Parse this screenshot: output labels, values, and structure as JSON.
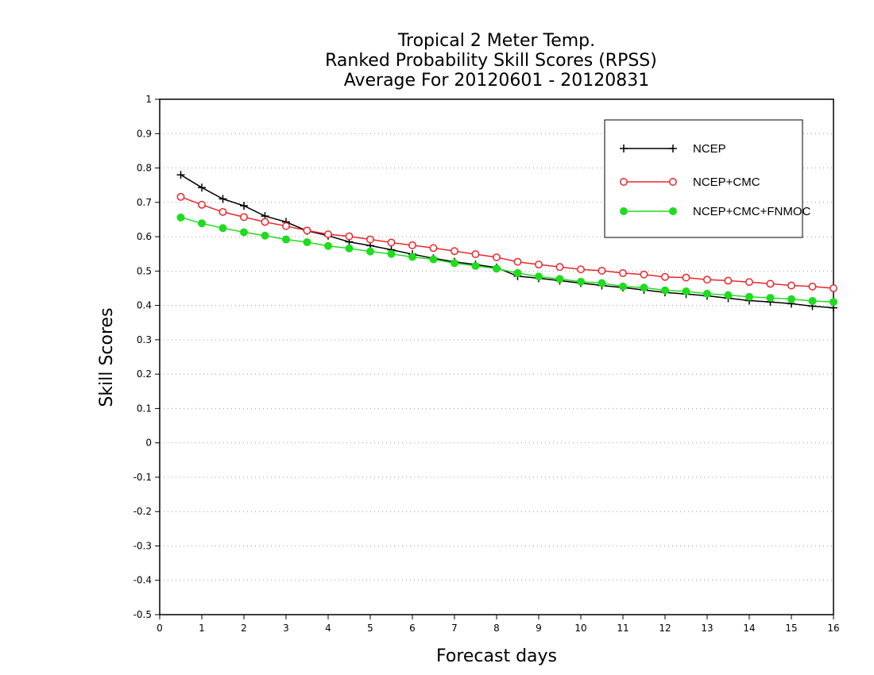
{
  "chart_data": {
    "type": "line",
    "title_lines": [
      "Tropical 2 Meter Temp.",
      "Ranked Probability Skill Scores (RPSS)",
      "Average For 20120601 - 20120831"
    ],
    "xlabel": "Forecast days",
    "ylabel": "Skill Scores",
    "xlim": [
      0,
      16
    ],
    "ylim": [
      -0.5,
      1
    ],
    "x_ticks": [
      "0",
      "1",
      "2",
      "3",
      "4",
      "5",
      "6",
      "7",
      "8",
      "9",
      "10",
      "11",
      "12",
      "13",
      "14",
      "15",
      "16"
    ],
    "y_ticks": [
      "-0.5",
      "-0.4",
      "-0.3",
      "-0.2",
      "-0.1",
      "0",
      "0.1",
      "0.2",
      "0.3",
      "0.4",
      "0.5",
      "0.6",
      "0.7",
      "0.8",
      "0.9",
      "1"
    ],
    "grid": "horizontal dotted",
    "legend_position": "top-right",
    "x": [
      0.5,
      1,
      1.5,
      2,
      2.5,
      3,
      3.5,
      4,
      4.5,
      5,
      5.5,
      6,
      6.5,
      7,
      7.5,
      8,
      8.5,
      9,
      9.5,
      10,
      10.5,
      11,
      11.5,
      12,
      12.5,
      13,
      13.5,
      14,
      14.5,
      15,
      15.5,
      16
    ],
    "series": [
      {
        "name": "NCEP",
        "color": "#000000",
        "marker": "plus",
        "values": [
          0.78,
          0.743,
          0.71,
          0.69,
          0.66,
          0.643,
          0.617,
          0.603,
          0.585,
          0.574,
          0.562,
          0.549,
          0.537,
          0.527,
          0.519,
          0.51,
          0.485,
          0.479,
          0.472,
          0.465,
          0.458,
          0.452,
          0.445,
          0.438,
          0.433,
          0.428,
          0.421,
          0.414,
          0.41,
          0.405,
          0.398,
          0.393
        ]
      },
      {
        "name": "NCEP+CMC",
        "color": "#e8262b",
        "marker": "open-circle",
        "values": [
          0.716,
          0.693,
          0.672,
          0.657,
          0.643,
          0.631,
          0.618,
          0.607,
          0.601,
          0.592,
          0.583,
          0.575,
          0.567,
          0.558,
          0.549,
          0.54,
          0.527,
          0.519,
          0.512,
          0.505,
          0.501,
          0.494,
          0.49,
          0.483,
          0.481,
          0.475,
          0.472,
          0.468,
          0.463,
          0.458,
          0.455,
          0.45
        ]
      },
      {
        "name": "NCEP+CMC+FNMOC",
        "color": "#1fdc1f",
        "marker": "filled-circle",
        "values": [
          0.656,
          0.639,
          0.625,
          0.613,
          0.603,
          0.592,
          0.584,
          0.573,
          0.566,
          0.557,
          0.55,
          0.541,
          0.534,
          0.523,
          0.515,
          0.507,
          0.494,
          0.484,
          0.477,
          0.469,
          0.465,
          0.455,
          0.452,
          0.444,
          0.441,
          0.434,
          0.43,
          0.425,
          0.422,
          0.418,
          0.413,
          0.41
        ]
      }
    ]
  }
}
